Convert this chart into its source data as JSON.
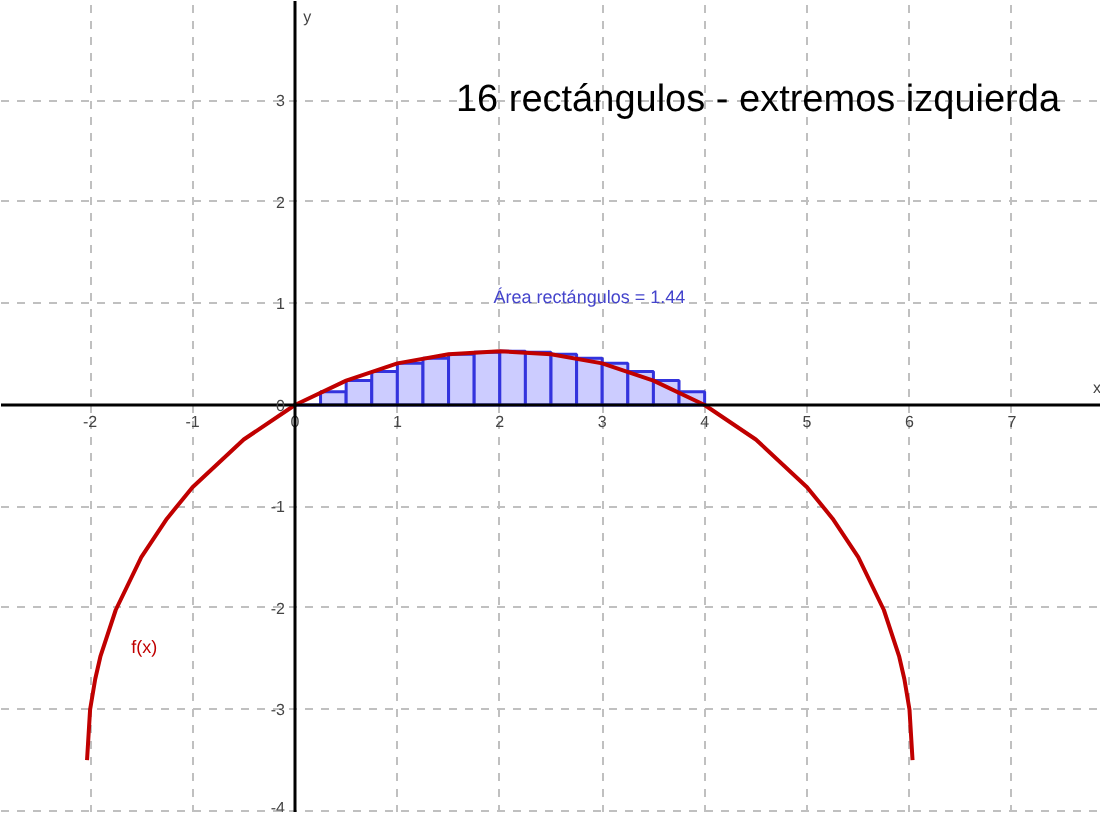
{
  "chart_data": {
    "type": "line",
    "title": "16 rectángulos - extremos izquierda",
    "xlabel": "x",
    "ylabel": "y",
    "annotations": [
      "Área rectángulos = 1.44",
      "f(x)"
    ],
    "series": [
      {
        "type": "bar",
        "color": "#ccccff",
        "x": [
          0.125,
          0.375,
          0.625,
          0.875,
          1.125,
          1.375,
          1.625,
          1.875,
          2.125,
          2.375,
          2.625,
          2.875,
          3.125,
          3.375,
          3.625,
          3.875
        ],
        "values": [
          0,
          0.13,
          0.24,
          0.33,
          0.41,
          0.46,
          0.5,
          0.52,
          0.53,
          0.52,
          0.5,
          0.46,
          0.41,
          0.33,
          0.24,
          0.13
        ]
      },
      {
        "color": "#c00000",
        "x": [
          -2.03,
          -2.0,
          -1.95,
          -1.9,
          -1.75,
          -1.5,
          -1.25,
          -1,
          -0.5,
          0,
          0.5,
          1,
          1.5,
          2,
          2.5,
          3,
          3.5,
          4,
          4.5,
          5,
          5.25,
          5.5,
          5.75,
          5.9,
          5.95,
          6.0,
          6.03
        ],
        "values": [
          -3.5,
          -3.0,
          -2.7,
          -2.48,
          -2.02,
          -1.5,
          -1.12,
          -0.81,
          -0.34,
          0,
          0.24,
          0.41,
          0.5,
          0.53,
          0.5,
          0.41,
          0.24,
          0,
          -0.34,
          -0.81,
          -1.12,
          -1.5,
          -2.02,
          -2.48,
          -2.7,
          -3.0,
          -3.5
        ]
      }
    ],
    "xlim": [
      -2.87,
      7.87
    ],
    "ylim": [
      -4.02,
      3.98
    ],
    "xticks": [
      -2,
      -1,
      0,
      1,
      2,
      3,
      4,
      5,
      6,
      7
    ],
    "yticks": [
      -4,
      -3,
      -2,
      -1,
      0,
      1,
      2,
      3
    ],
    "grid": true
  }
}
